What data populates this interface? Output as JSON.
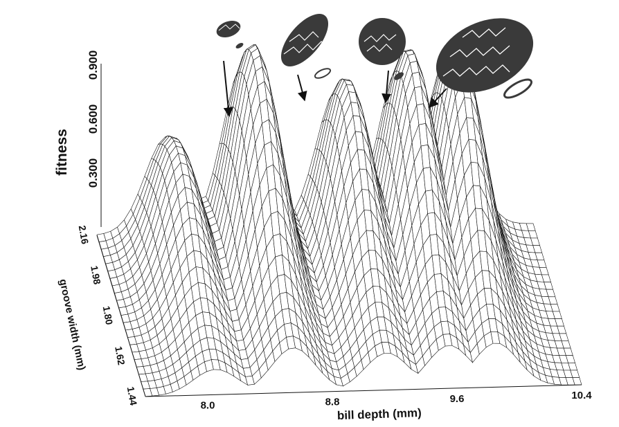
{
  "chart_data": {
    "type": "surface",
    "title": "",
    "zlabel": "fitness",
    "xlabel": "bill depth (mm)",
    "ylabel": "groove width (mm)",
    "z_ticks": [
      "0.300",
      "0.600",
      "0.900"
    ],
    "x_ticks": [
      "8.0",
      "8.8",
      "9.6",
      "10.4"
    ],
    "y_ticks": [
      "1.44",
      "1.62",
      "1.80",
      "1.98",
      "2.16"
    ],
    "xlim": [
      7.6,
      10.4
    ],
    "ylim": [
      1.44,
      2.16
    ],
    "zlim": [
      0,
      1.0
    ],
    "grid": "wireframe mesh",
    "peaks": [
      {
        "bill_depth_mm": 8.05,
        "fitness": 0.43,
        "cone": "small cone (arrow)"
      },
      {
        "bill_depth_mm": 8.55,
        "fitness": 0.76,
        "cone": "elongated cone (arrow)"
      },
      {
        "bill_depth_mm": 9.15,
        "fitness": 0.63,
        "cone": "round cone (arrow)"
      },
      {
        "bill_depth_mm": 9.55,
        "fitness": 0.73,
        "cone": "large cone (arrow)"
      },
      {
        "bill_depth_mm": 9.85,
        "fitness": 0.75,
        "cone": ""
      }
    ]
  },
  "colors": {
    "ink": "#111111",
    "surface": "#ffffff",
    "cone": "#3a3a3a"
  },
  "icons": [
    "pine-cone-icon",
    "seed-icon",
    "arrow-icon"
  ]
}
